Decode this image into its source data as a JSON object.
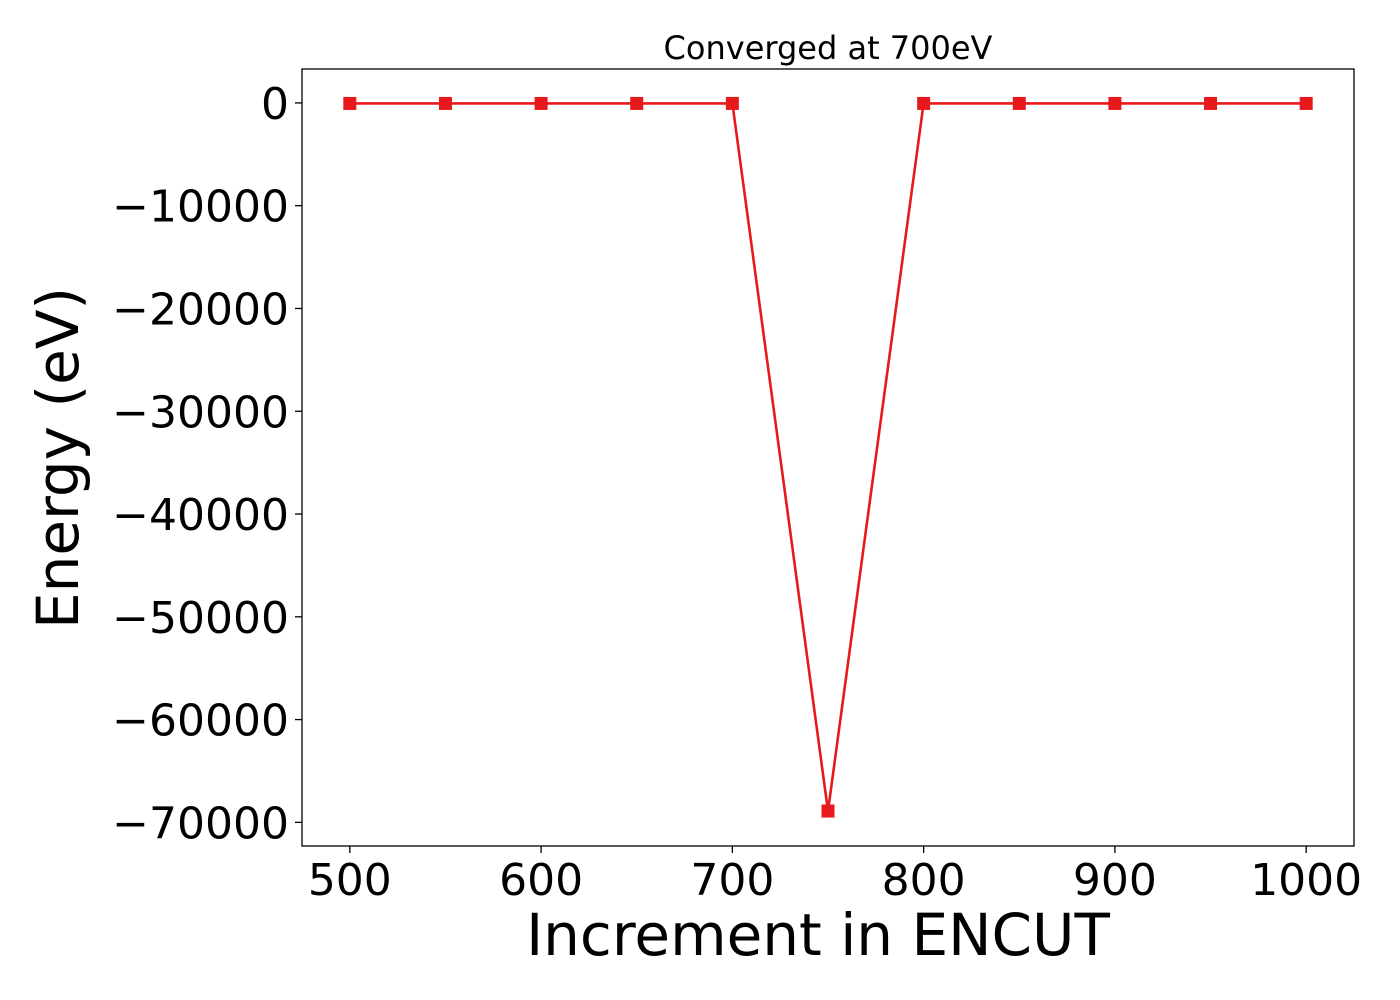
{
  "chart_data": {
    "type": "line",
    "title": "Converged at 700eV",
    "xlabel": "Increment in ENCUT",
    "ylabel": "Energy (eV)",
    "xlim": [
      475,
      1025
    ],
    "ylim": [
      -72300,
      3300
    ],
    "x_ticks": [
      500,
      600,
      700,
      800,
      900,
      1000
    ],
    "x_tick_labels": [
      "500",
      "600",
      "700",
      "800",
      "900",
      "1000"
    ],
    "y_ticks": [
      0,
      -10000,
      -20000,
      -30000,
      -40000,
      -50000,
      -60000,
      -70000
    ],
    "y_tick_labels": [
      "0",
      "−10000",
      "−20000",
      "−30000",
      "−40000",
      "−50000",
      "−60000",
      "−70000"
    ],
    "grid": false,
    "series": [
      {
        "color": "#e8191c",
        "marker": "square",
        "x": [
          500,
          550,
          600,
          650,
          700,
          750,
          800,
          850,
          900,
          950,
          1000
        ],
        "y": [
          -50,
          -50,
          -50,
          -50,
          -50,
          -68900,
          -50,
          -50,
          -50,
          -50,
          -50
        ]
      }
    ]
  }
}
